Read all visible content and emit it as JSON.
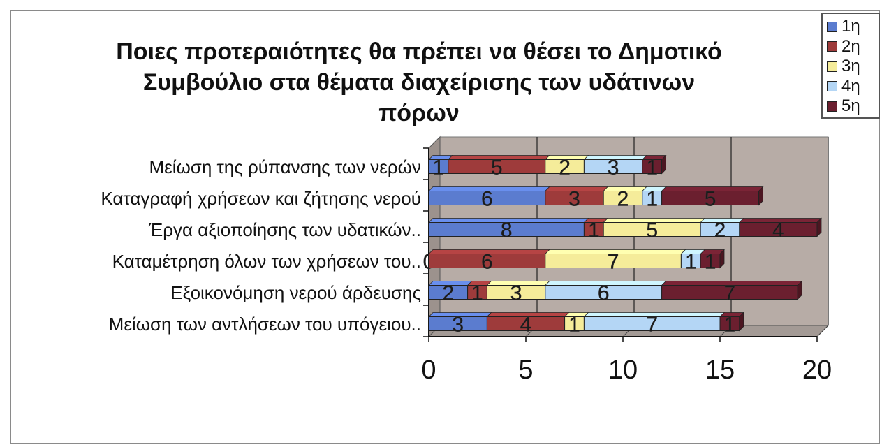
{
  "chart_data": {
    "type": "bar",
    "orientation": "horizontal",
    "stacked": true,
    "three_d": true,
    "title": "Ποιες προτεραιότητες θα πρέπει να θέσει το Δημοτικό Συμβούλιο στα θέματα διαχείρισης των υδάτινων πόρων",
    "categories": [
      "Μείωση της ρύπανσης των νερών",
      "Καταγραφή χρήσεων και ζήτησης νερού",
      "Έργα αξιοποίησης των υδατικών..",
      "Καταμέτρηση όλων των χρήσεων του..",
      "Εξοικονόμηση νερού άρδευσης",
      "Μείωση των αντλήσεων του υπόγειου.."
    ],
    "series": [
      {
        "name": "1η",
        "color": "#5b7ccf",
        "values": [
          1,
          6,
          8,
          0,
          2,
          3
        ]
      },
      {
        "name": "2η",
        "color": "#9e3b3b",
        "values": [
          5,
          3,
          1,
          6,
          1,
          4
        ]
      },
      {
        "name": "3η",
        "color": "#f5ec9a",
        "values": [
          2,
          2,
          5,
          7,
          3,
          1
        ]
      },
      {
        "name": "4η",
        "color": "#b4d6f5",
        "values": [
          3,
          1,
          2,
          1,
          6,
          7
        ]
      },
      {
        "name": "5η",
        "color": "#6b1f2f",
        "values": [
          1,
          5,
          4,
          1,
          7,
          1
        ]
      }
    ],
    "xlim": [
      0,
      20
    ],
    "xticks": [
      "0",
      "5",
      "10",
      "15",
      "20"
    ],
    "grid": true,
    "legend_position": "top-right"
  }
}
